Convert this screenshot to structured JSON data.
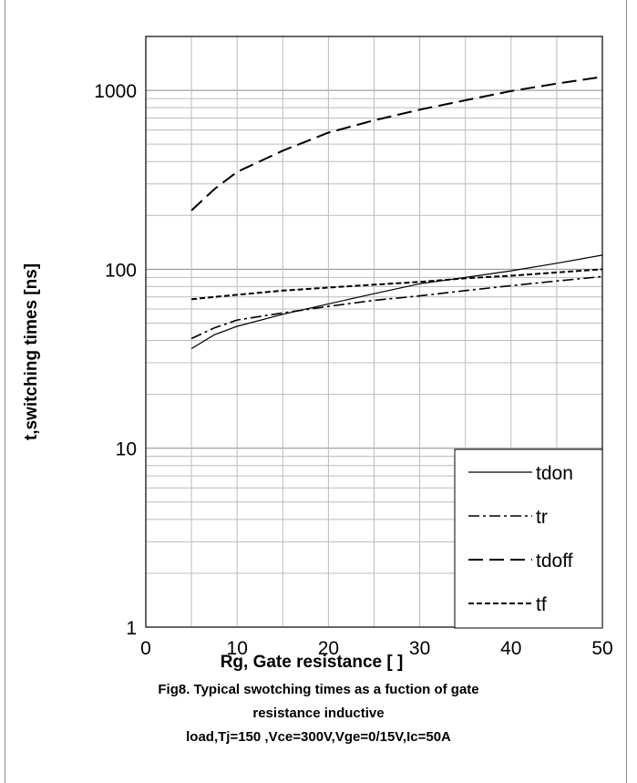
{
  "chart_data": {
    "type": "line",
    "xlabel": "Rg, Gate resistance [   ]",
    "ylabel": "t,switching times [ns]",
    "xlim": [
      0,
      50
    ],
    "ylim": [
      1,
      2000
    ],
    "yscale": "log",
    "x_ticks": [
      "0",
      "10",
      "20",
      "30",
      "40",
      "50"
    ],
    "y_ticks": [
      "1",
      "10",
      "100",
      "1000"
    ],
    "grid": true,
    "legend_position": "bottom-right",
    "x": [
      5,
      7.5,
      10,
      15,
      20,
      25,
      30,
      35,
      40,
      45,
      50
    ],
    "series": [
      {
        "name": "tdon",
        "dash": "solid",
        "values": [
          36,
          43,
          48,
          56,
          64,
          73,
          83,
          90,
          98,
          108,
          120
        ]
      },
      {
        "name": "tr",
        "dash": "dashdot",
        "values": [
          41,
          47,
          52,
          57,
          62,
          67,
          71,
          76,
          81,
          86,
          91
        ]
      },
      {
        "name": "tdoff",
        "dash": "longdash",
        "values": [
          213,
          280,
          350,
          460,
          580,
          680,
          780,
          880,
          990,
          1090,
          1190
        ]
      },
      {
        "name": "tf",
        "dash": "shortdash",
        "values": [
          68,
          70,
          72,
          76,
          79,
          82,
          85,
          89,
          92,
          96,
          100
        ]
      }
    ]
  },
  "caption": {
    "line1": "Fig8. Typical swotching times as a fuction of gate",
    "line2": "resistance    inductive",
    "line3": "load,Tj=150    ,Vce=300V,Vge=0/15V,Ic=50A"
  }
}
